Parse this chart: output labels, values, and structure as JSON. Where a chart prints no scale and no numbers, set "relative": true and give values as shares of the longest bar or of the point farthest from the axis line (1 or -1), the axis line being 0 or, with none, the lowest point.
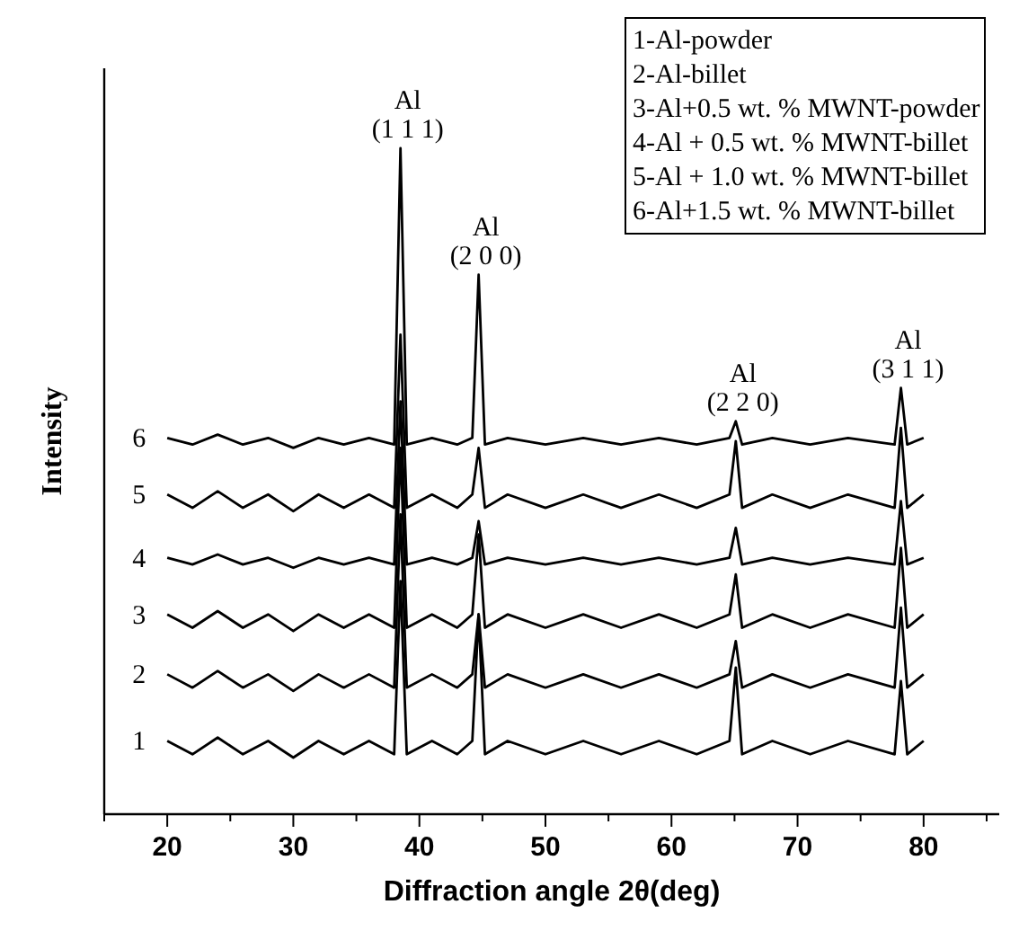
{
  "chart_data": {
    "type": "line",
    "relative": true,
    "xlabel": "Diffraction angle 2θ(deg)",
    "ylabel": "Intensity",
    "xlim": [
      15,
      86
    ],
    "xticks": [
      {
        "value": 15,
        "label": null
      },
      20,
      {
        "value": 25,
        "label": null
      },
      30,
      {
        "value": 35,
        "label": null
      },
      40,
      {
        "value": 45,
        "label": null
      },
      50,
      {
        "value": 55,
        "label": null
      },
      60,
      {
        "value": 65,
        "label": null
      },
      70,
      {
        "value": 75,
        "label": null
      },
      80,
      {
        "value": 85,
        "label": null
      }
    ],
    "marker": "none",
    "line_style": "solid",
    "x": [
      20,
      22,
      24,
      26,
      28,
      30,
      32,
      34,
      36,
      38,
      38.5,
      39,
      41,
      43,
      44.2,
      44.7,
      45.2,
      47,
      50,
      53,
      56,
      59,
      62,
      64.6,
      65.1,
      65.6,
      68,
      71,
      74,
      77.7,
      78.2,
      78.7,
      80
    ],
    "series": [
      {
        "name": "1",
        "color": "#000000",
        "values": [
          0.11,
          0.09,
          0.115,
          0.09,
          0.11,
          0.085,
          0.11,
          0.09,
          0.11,
          0.09,
          0.35,
          0.09,
          0.11,
          0.09,
          0.11,
          0.3,
          0.09,
          0.11,
          0.09,
          0.11,
          0.09,
          0.11,
          0.09,
          0.11,
          0.22,
          0.09,
          0.11,
          0.09,
          0.11,
          0.09,
          0.2,
          0.09,
          0.11
        ]
      },
      {
        "name": "2",
        "color": "#000000",
        "values": [
          0.21,
          0.19,
          0.215,
          0.19,
          0.21,
          0.185,
          0.21,
          0.19,
          0.21,
          0.19,
          0.45,
          0.19,
          0.21,
          0.19,
          0.21,
          0.3,
          0.19,
          0.21,
          0.19,
          0.21,
          0.19,
          0.21,
          0.19,
          0.21,
          0.26,
          0.19,
          0.21,
          0.19,
          0.21,
          0.19,
          0.31,
          0.19,
          0.21
        ]
      },
      {
        "name": "3",
        "color": "#000000",
        "values": [
          0.3,
          0.28,
          0.305,
          0.28,
          0.3,
          0.275,
          0.3,
          0.28,
          0.3,
          0.28,
          0.55,
          0.28,
          0.3,
          0.28,
          0.3,
          0.42,
          0.28,
          0.3,
          0.28,
          0.3,
          0.28,
          0.3,
          0.28,
          0.3,
          0.36,
          0.28,
          0.3,
          0.28,
          0.3,
          0.28,
          0.4,
          0.28,
          0.3
        ]
      },
      {
        "name": "4",
        "color": "#000000",
        "values": [
          0.385,
          0.375,
          0.39,
          0.375,
          0.385,
          0.37,
          0.385,
          0.375,
          0.385,
          0.375,
          0.62,
          0.375,
          0.385,
          0.375,
          0.385,
          0.44,
          0.375,
          0.385,
          0.375,
          0.385,
          0.375,
          0.385,
          0.375,
          0.385,
          0.43,
          0.375,
          0.385,
          0.375,
          0.385,
          0.375,
          0.47,
          0.375,
          0.385
        ]
      },
      {
        "name": "5",
        "color": "#000000",
        "values": [
          0.48,
          0.46,
          0.485,
          0.46,
          0.48,
          0.455,
          0.48,
          0.46,
          0.48,
          0.46,
          0.72,
          0.46,
          0.48,
          0.46,
          0.48,
          0.55,
          0.46,
          0.48,
          0.46,
          0.48,
          0.46,
          0.48,
          0.46,
          0.48,
          0.56,
          0.46,
          0.48,
          0.46,
          0.48,
          0.46,
          0.58,
          0.46,
          0.48
        ]
      },
      {
        "name": "6",
        "color": "#000000",
        "values": [
          0.565,
          0.555,
          0.57,
          0.555,
          0.565,
          0.55,
          0.565,
          0.555,
          0.565,
          0.555,
          1,
          0.555,
          0.565,
          0.555,
          0.565,
          0.81,
          0.555,
          0.565,
          0.555,
          0.565,
          0.555,
          0.565,
          0.555,
          0.565,
          0.59,
          0.555,
          0.565,
          0.555,
          0.565,
          0.555,
          0.64,
          0.555,
          0.565
        ]
      }
    ],
    "annotations": [
      "1-Al-powder\n2-Al-billet\n3-Al+0.5 wt. % MWNT-powder\n4-Al + 0.5 wt. % MWNT-billet\n5-Al + 1.0 wt. % MWNT-billet\n6-Al+1.5 wt. % MWNT-billet",
      {
        "text": "Al\n(1 1 1)",
        "x": 38.5,
        "y": 1
      },
      {
        "text": "Al\n(2 0 0)",
        "x": 44.7,
        "y": 0.81
      },
      {
        "text": "Al\n(2 2 0)",
        "x": 65.1,
        "y": 0.59
      },
      {
        "text": "Al\n(3 1 1)",
        "x": 78.2,
        "y": 0.64
      }
    ]
  }
}
